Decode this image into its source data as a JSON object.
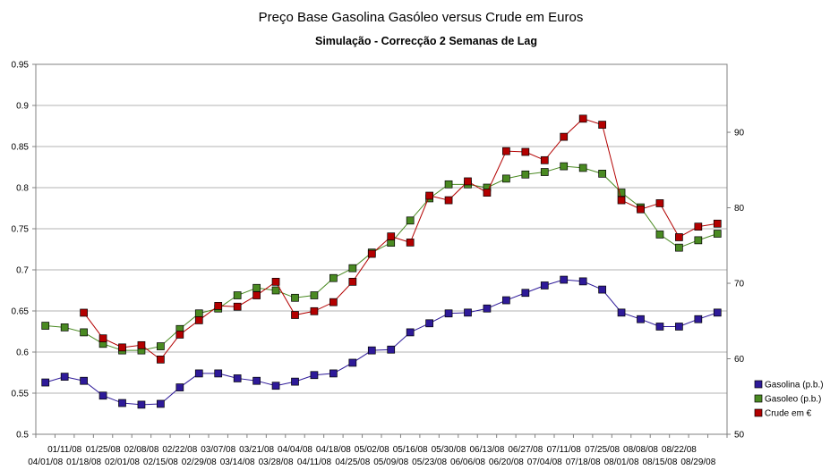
{
  "chart_data": {
    "type": "line",
    "title": "Preço Base Gasolina Gasóleo versus Crude em Euros",
    "subtitle": "Simulação - Correcção 2 Semanas de Lag",
    "x_labels_top": [
      "01/11/08",
      "01/25/08",
      "02/08/08",
      "02/22/08",
      "03/07/08",
      "03/21/08",
      "04/04/08",
      "04/18/08",
      "05/02/08",
      "05/16/08",
      "05/30/08",
      "06/13/08",
      "06/27/08",
      "07/11/08",
      "07/25/08",
      "08/08/08",
      "08/22/08"
    ],
    "x_labels_bottom": [
      "04/01/08",
      "01/18/08",
      "02/01/08",
      "02/15/08",
      "02/29/08",
      "03/14/08",
      "03/28/08",
      "04/11/08",
      "04/25/08",
      "05/09/08",
      "05/23/08",
      "06/06/08",
      "06/20/08",
      "07/04/08",
      "07/18/08",
      "08/01/08",
      "08/15/08",
      "08/29/08"
    ],
    "y_left": {
      "min": 0.5,
      "max": 0.95,
      "step": 0.05,
      "ticks": [
        "0.5",
        "0.55",
        "0.6",
        "0.65",
        "0.7",
        "0.75",
        "0.8",
        "0.85",
        "0.9",
        "0.95"
      ]
    },
    "y_right": {
      "min": 50,
      "max": 99,
      "ticks": [
        "50",
        "60",
        "70",
        "80",
        "90"
      ]
    },
    "grid": true,
    "legend_position": "right",
    "series": [
      {
        "name": "Gasolina (p.b.)",
        "axis": "left",
        "color": "#2e1a99",
        "values": [
          0.563,
          0.57,
          0.565,
          0.547,
          0.538,
          0.536,
          0.537,
          0.557,
          0.574,
          0.574,
          0.568,
          0.565,
          0.559,
          0.564,
          0.572,
          0.574,
          0.587,
          0.602,
          0.603,
          0.624,
          0.635,
          0.647,
          0.648,
          0.653,
          0.663,
          0.672,
          0.681,
          0.688,
          0.686,
          0.676,
          0.648,
          0.64,
          0.631,
          0.631,
          0.64,
          0.648
        ]
      },
      {
        "name": "Gasoleo (p.b.)",
        "axis": "left",
        "color": "#4a8a22",
        "values": [
          0.632,
          0.63,
          0.624,
          0.61,
          0.602,
          0.602,
          0.607,
          0.628,
          0.647,
          0.653,
          0.669,
          0.678,
          0.675,
          0.666,
          0.669,
          0.69,
          0.702,
          0.721,
          0.733,
          0.76,
          0.787,
          0.804,
          0.804,
          0.8,
          0.811,
          0.816,
          0.819,
          0.826,
          0.824,
          0.817,
          0.794,
          0.776,
          0.743,
          0.727,
          0.736,
          0.744
        ]
      },
      {
        "name": "Crude em €",
        "axis": "right",
        "color": "#b30000",
        "values": [
          null,
          null,
          66.1,
          62.7,
          61.5,
          61.8,
          59.9,
          63.2,
          65.1,
          67.0,
          66.9,
          68.4,
          70.2,
          65.8,
          66.3,
          67.5,
          70.2,
          73.9,
          76.2,
          75.4,
          81.6,
          81.0,
          83.5,
          82.0,
          87.5,
          87.4,
          86.3,
          89.4,
          91.8,
          91.0,
          81.0,
          79.8,
          80.6,
          76.1,
          77.5,
          77.9
        ]
      }
    ]
  }
}
